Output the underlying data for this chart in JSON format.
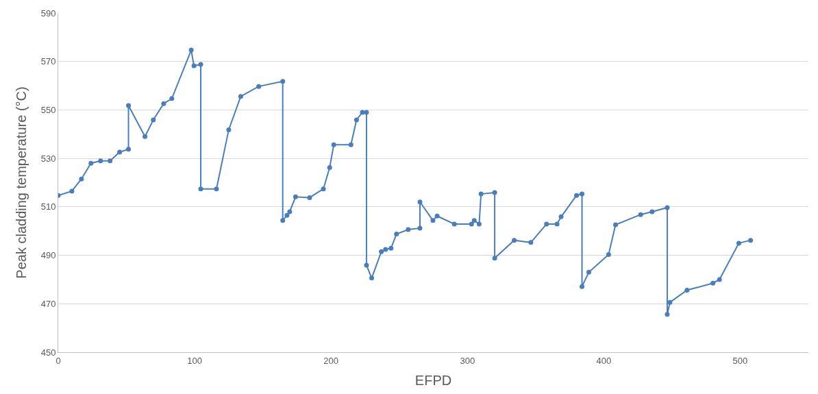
{
  "chart_data": {
    "type": "line",
    "xlabel": "EFPD",
    "ylabel": "Peak cladding temperature (°C)",
    "x": [
      0,
      10,
      17,
      24,
      31,
      38,
      45,
      51.5,
      51.5,
      63.6,
      69.7,
      77.3,
      83.3,
      97.5,
      99.5,
      104.5,
      104.5,
      116,
      125,
      133.8,
      147,
      164.6,
      164.6,
      167.7,
      169.7,
      174,
      184.3,
      194.4,
      199,
      202,
      214.6,
      218.7,
      223,
      226,
      226,
      229.8,
      236.9,
      240,
      244,
      248,
      256.6,
      265.2,
      265.2,
      274.7,
      277.8,
      290.4,
      303,
      305,
      308.6,
      310,
      320,
      320,
      334.3,
      346.5,
      358,
      365.7,
      368.7,
      380,
      384,
      384,
      389,
      403.5,
      408.6,
      427,
      435.4,
      446.5,
      446.5,
      448.5,
      461,
      480,
      484.8,
      499,
      507.6
    ],
    "series": [
      {
        "color": "#4a7ebb",
        "values": [
          514.7,
          516.5,
          521.5,
          528,
          529,
          529,
          532.6,
          533.8,
          551.8,
          539,
          545.9,
          552.6,
          554.7,
          574.7,
          568.2,
          568.8,
          517.4,
          517.4,
          541.8,
          555.6,
          559.7,
          561.8,
          504.4,
          506.5,
          508,
          514.1,
          513.8,
          517.4,
          526.2,
          535.6,
          535.6,
          545.9,
          549,
          549,
          485.9,
          480.6,
          491.5,
          492.4,
          492.9,
          498.8,
          500.6,
          501.2,
          512,
          504.4,
          506.2,
          502.9,
          502.9,
          504.4,
          502.9,
          515.3,
          515.9,
          488.8,
          496.2,
          495.3,
          502.9,
          502.9,
          505.9,
          514.7,
          515.3,
          477.1,
          483,
          490.3,
          502.6,
          506.8,
          508,
          509.7,
          465.6,
          470.6,
          475.6,
          478.5,
          480,
          495,
          496.2
        ]
      }
    ],
    "xlim": [
      0,
      550
    ],
    "xticks": [
      0,
      100,
      200,
      300,
      400,
      500
    ],
    "ylim": [
      450,
      590
    ],
    "yticks": [
      450,
      470,
      490,
      510,
      530,
      550,
      570,
      590
    ],
    "grid": "y",
    "marker": "circle",
    "line_style": "solid"
  }
}
